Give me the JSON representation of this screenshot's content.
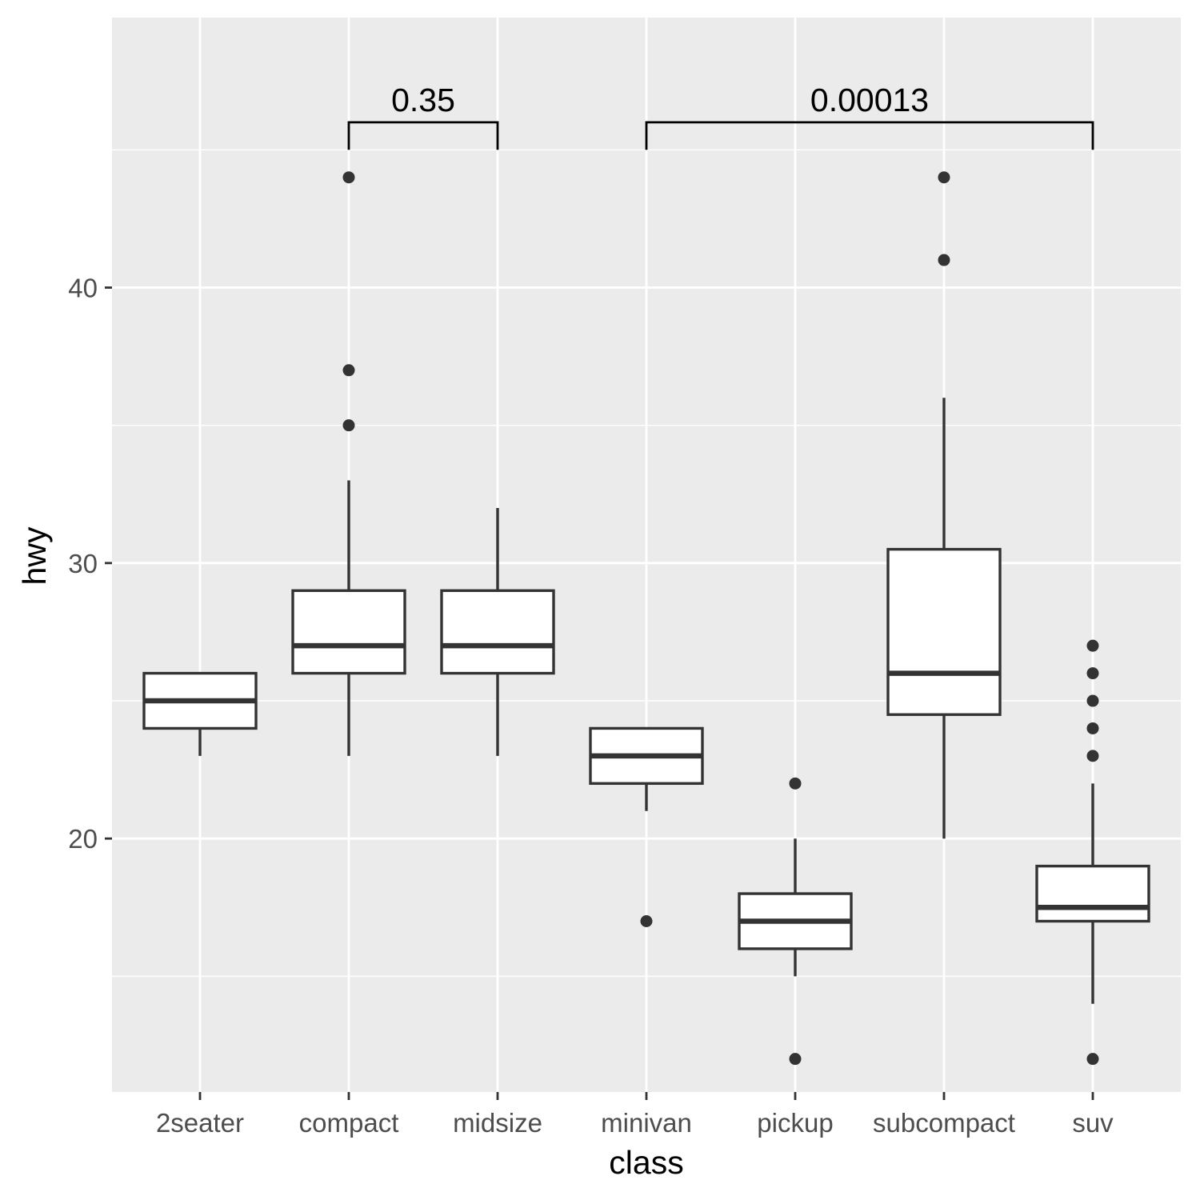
{
  "chart_data": {
    "type": "boxplot",
    "xlabel": "class",
    "ylabel": "hwy",
    "ylim": [
      10.8,
      49.8
    ],
    "y_ticks": [
      20,
      30,
      40
    ],
    "grid": true,
    "colors": {
      "panel": "#ebebeb",
      "grid": "#ffffff",
      "box_line": "#333333",
      "box_fill": "#ffffff",
      "tick_text": "#4d4d4d",
      "annotation": "#000000"
    },
    "categories": [
      "2seater",
      "compact",
      "midsize",
      "minivan",
      "pickup",
      "subcompact",
      "suv"
    ],
    "boxes": [
      {
        "category": "2seater",
        "whisker_low": 23,
        "q1": 24,
        "median": 25,
        "q3": 26,
        "whisker_high": 26,
        "outliers": []
      },
      {
        "category": "compact",
        "whisker_low": 23,
        "q1": 26,
        "median": 27,
        "q3": 29,
        "whisker_high": 33,
        "outliers": [
          35,
          37,
          44
        ]
      },
      {
        "category": "midsize",
        "whisker_low": 23,
        "q1": 26,
        "median": 27,
        "q3": 29,
        "whisker_high": 32,
        "outliers": []
      },
      {
        "category": "minivan",
        "whisker_low": 21,
        "q1": 22,
        "median": 23,
        "q3": 24,
        "whisker_high": 24,
        "outliers": [
          17
        ]
      },
      {
        "category": "pickup",
        "whisker_low": 15,
        "q1": 16,
        "median": 17,
        "q3": 18,
        "whisker_high": 20,
        "outliers": [
          12,
          22
        ]
      },
      {
        "category": "subcompact",
        "whisker_low": 20,
        "q1": 24.5,
        "median": 26,
        "q3": 30.5,
        "whisker_high": 36,
        "outliers": [
          41,
          44
        ]
      },
      {
        "category": "suv",
        "whisker_low": 14,
        "q1": 17,
        "median": 17.5,
        "q3": 19,
        "whisker_high": 22,
        "outliers": [
          12,
          23,
          24,
          25,
          26,
          27
        ]
      }
    ],
    "annotations": [
      {
        "from": "compact",
        "to": "midsize",
        "label": "0.35",
        "y": 46,
        "tip_y": 45
      },
      {
        "from": "minivan",
        "to": "suv",
        "label": "0.00013",
        "y": 46,
        "tip_y": 45
      }
    ]
  }
}
